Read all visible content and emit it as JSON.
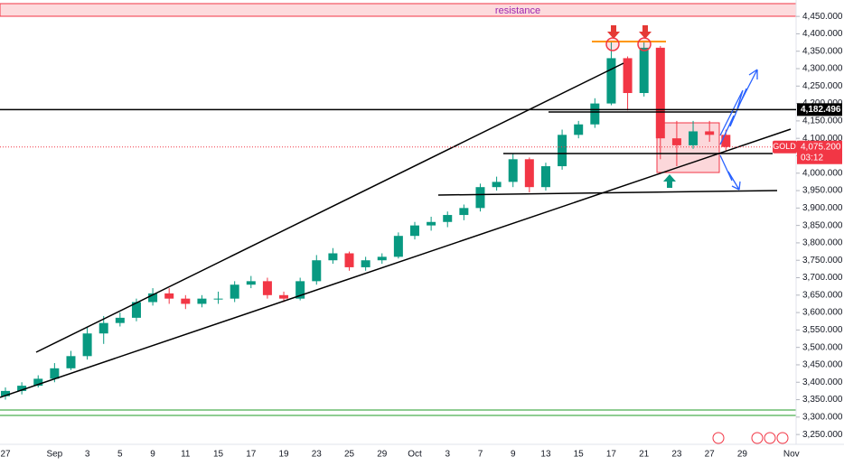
{
  "chart_data": {
    "type": "candlestick",
    "categories": [
      "27",
      null,
      null,
      "Sep",
      null,
      "3",
      null,
      "5",
      null,
      "9",
      null,
      "11",
      null,
      "15",
      null,
      "17",
      null,
      "19",
      null,
      "23",
      null,
      "25",
      null,
      "29",
      null,
      "Oct",
      null,
      "3",
      null,
      "7",
      null,
      "9",
      null,
      "13",
      null,
      "15",
      null,
      "17",
      null,
      "21",
      null,
      "23",
      null,
      "27",
      null,
      "29",
      null,
      null,
      "Nov"
    ],
    "open": [
      3360,
      3375,
      3390,
      3410,
      3440,
      3475,
      3540,
      3570,
      3585,
      3630,
      3655,
      3640,
      3625,
      3640,
      3640,
      3680,
      3690,
      3650,
      3640,
      3690,
      3750,
      3770,
      3730,
      3750,
      3760,
      3820,
      3850,
      3860,
      3880,
      3900,
      3960,
      3975,
      4040,
      3960,
      4020,
      4110,
      4140,
      4200,
      4330,
      4230,
      4360,
      4100,
      4080,
      4120,
      4110,
      null,
      null,
      null,
      null
    ],
    "high": [
      3385,
      3400,
      3420,
      3455,
      3490,
      3560,
      3590,
      3600,
      3640,
      3670,
      3670,
      3650,
      3650,
      3660,
      3690,
      3705,
      3700,
      3660,
      3700,
      3765,
      3785,
      3775,
      3760,
      3770,
      3830,
      3860,
      3875,
      3890,
      3910,
      3970,
      3990,
      4055,
      4045,
      4030,
      4125,
      4150,
      4215,
      4380,
      4335,
      4380,
      4365,
      4150,
      4150,
      4150,
      4125,
      null,
      null,
      null,
      null
    ],
    "low": [
      3350,
      3365,
      3385,
      3400,
      3435,
      3465,
      3510,
      3560,
      3575,
      3620,
      3625,
      3610,
      3615,
      3625,
      3630,
      3670,
      3640,
      3630,
      3635,
      3680,
      3740,
      3720,
      3720,
      3740,
      3755,
      3810,
      3835,
      3845,
      3865,
      3890,
      3950,
      3960,
      3945,
      3950,
      4010,
      4100,
      4130,
      4195,
      4180,
      4220,
      4040,
      4020,
      4070,
      4090,
      4065,
      null,
      null,
      null,
      null
    ],
    "close": [
      3375,
      3390,
      3410,
      3440,
      3475,
      3540,
      3570,
      3585,
      3630,
      3655,
      3640,
      3625,
      3640,
      3640,
      3680,
      3690,
      3650,
      3640,
      3690,
      3750,
      3770,
      3730,
      3750,
      3760,
      3820,
      3850,
      3860,
      3880,
      3900,
      3960,
      3975,
      4040,
      3960,
      4020,
      4110,
      4140,
      4200,
      4330,
      4230,
      4360,
      4100,
      4080,
      4120,
      4110,
      4075.2,
      null,
      null,
      null,
      null
    ],
    "up_color": "#089981",
    "down_color": "#f23645",
    "ylim": [
      3227,
      4497
    ],
    "yticks": [
      {
        "value": 3250,
        "label": "3,250.000"
      },
      {
        "value": 3300,
        "label": "3,300.000"
      },
      {
        "value": 3350,
        "label": "3,350.000"
      },
      {
        "value": 3400,
        "label": "3,400.000"
      },
      {
        "value": 3450,
        "label": "3,450.000"
      },
      {
        "value": 3500,
        "label": "3,500.000"
      },
      {
        "value": 3550,
        "label": "3,550.000"
      },
      {
        "value": 3600,
        "label": "3,600.000"
      },
      {
        "value": 3650,
        "label": "3,650.000"
      },
      {
        "value": 3700,
        "label": "3,700.000"
      },
      {
        "value": 3750,
        "label": "3,750.000"
      },
      {
        "value": 3800,
        "label": "3,800.000"
      },
      {
        "value": 3850,
        "label": "3,850.000"
      },
      {
        "value": 3900,
        "label": "3,900.000"
      },
      {
        "value": 3950,
        "label": "3,950.000"
      },
      {
        "value": 4000,
        "label": "4,000.000"
      },
      {
        "value": 4050,
        "label": "4,050.000"
      },
      {
        "value": 4100,
        "label": "4,100.000"
      },
      {
        "value": 4150,
        "label": "4,150.000"
      },
      {
        "value": 4200,
        "label": "4,200.000"
      },
      {
        "value": 4250,
        "label": "4,250.000"
      },
      {
        "value": 4300,
        "label": "4,300.000"
      },
      {
        "value": 4350,
        "label": "4,350.000"
      },
      {
        "value": 4400,
        "label": "4,400.000"
      },
      {
        "value": 4450,
        "label": "4,450.000"
      }
    ],
    "annotation": "resistance",
    "level_line": {
      "value": 4182.496,
      "label": "4,182.496"
    },
    "last_price": {
      "symbol": "GOLD",
      "value": 4075.2,
      "label": "4,075.200",
      "countdown": "03:12"
    }
  }
}
